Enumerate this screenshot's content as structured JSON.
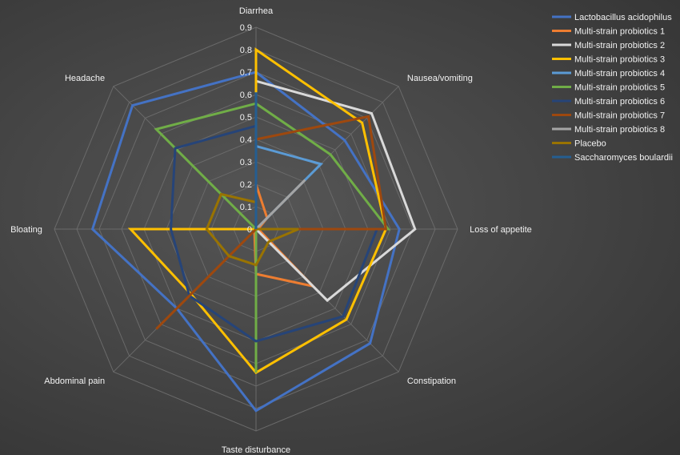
{
  "chart_data": {
    "type": "radar",
    "axes": [
      "Diarrhea",
      "Nausea/vomiting",
      "Loss of appetite",
      "Constipation",
      "Taste disturbance",
      "Abdominal pain",
      "Bloating",
      "Headache"
    ],
    "rlim": [
      0,
      0.9
    ],
    "ticks": [
      "0",
      "0.1",
      "0.2",
      "0.3",
      "0.4",
      "0.5",
      "0.6",
      "0.7",
      "0.8",
      "0.9"
    ],
    "grid": true,
    "legend_position": "top-right",
    "series": [
      {
        "name": "Lactobacillus acidophilus",
        "color": "#4472C4",
        "values": [
          0.7,
          0.56,
          0.64,
          0.72,
          0.81,
          0.5,
          0.73,
          0.78
        ]
      },
      {
        "name": "Multi-strain probiotics 1",
        "color": "#ED7D31",
        "values": [
          0.2,
          0.07,
          0.01,
          0.36,
          0.2,
          0.01,
          0.0,
          0.0
        ]
      },
      {
        "name": "Multi-strain probiotics 2",
        "color": "#D9D9D9",
        "values": [
          0.66,
          0.73,
          0.71,
          0.45,
          0.0,
          0.0,
          0.0,
          0.0
        ]
      },
      {
        "name": "Multi-strain probiotics 3",
        "color": "#FFC000",
        "values": [
          0.8,
          0.67,
          0.58,
          0.57,
          0.64,
          0.41,
          0.56,
          0.0
        ]
      },
      {
        "name": "Multi-strain probiotics 4",
        "color": "#5B9BD5",
        "values": [
          0.37,
          0.41,
          0.0,
          0.0,
          0.0,
          0.0,
          0.0,
          0.0
        ]
      },
      {
        "name": "Multi-strain probiotics 5",
        "color": "#70AD47",
        "values": [
          0.56,
          0.47,
          0.59,
          0.0,
          0.64,
          0.0,
          0.0,
          0.63
        ]
      },
      {
        "name": "Multi-strain probiotics 6",
        "color": "#264478",
        "values": [
          0.46,
          0.0,
          0.54,
          0.55,
          0.5,
          0.42,
          0.38,
          0.51
        ]
      },
      {
        "name": "Multi-strain probiotics 7",
        "color": "#9E480E",
        "values": [
          0.4,
          0.71,
          0.58,
          0.0,
          0.0,
          0.63,
          0.0,
          0.0
        ]
      },
      {
        "name": "Multi-strain probiotics 8",
        "color": "#A5A5A5",
        "values": [
          0.0,
          0.31,
          0.0,
          0.0,
          0.0,
          0.0,
          0.0,
          0.0
        ]
      },
      {
        "name": "Placebo",
        "color": "#997300",
        "values": [
          0.12,
          0.0,
          0.19,
          0.08,
          0.16,
          0.17,
          0.22,
          0.22
        ]
      },
      {
        "name": "Saccharomyces boulardii",
        "color": "#255E91",
        "values": [
          0.61,
          0.0,
          0.0,
          0.0,
          0.0,
          0.0,
          0.0,
          0.0
        ]
      }
    ]
  }
}
